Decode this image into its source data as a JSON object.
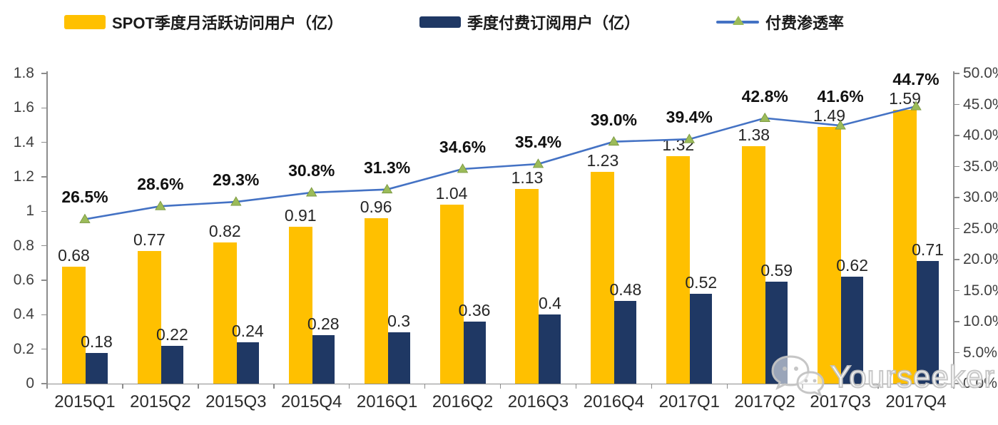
{
  "chart_data": {
    "type": "bar+line",
    "categories": [
      "2015Q1",
      "2015Q2",
      "2015Q3",
      "2015Q4",
      "2016Q1",
      "2016Q2",
      "2016Q3",
      "2016Q4",
      "2017Q1",
      "2017Q2",
      "2017Q3",
      "2017Q4"
    ],
    "series": [
      {
        "name": "SPOT季度月活跃访问用户（亿）",
        "type": "bar",
        "axis": "left",
        "color": "#FFC000",
        "values": [
          0.68,
          0.77,
          0.82,
          0.91,
          0.96,
          1.04,
          1.13,
          1.23,
          1.32,
          1.38,
          1.49,
          1.59
        ],
        "labels": [
          "0.68",
          "0.77",
          "0.82",
          "0.91",
          "0.96",
          "1.04",
          "1.13",
          "1.23",
          "1.32",
          "1.38",
          "1.49",
          "1.59"
        ]
      },
      {
        "name": "季度付费订阅用户（亿）",
        "type": "bar",
        "axis": "left",
        "color": "#1F3864",
        "values": [
          0.18,
          0.22,
          0.24,
          0.28,
          0.3,
          0.36,
          0.4,
          0.48,
          0.52,
          0.59,
          0.62,
          0.71
        ],
        "labels": [
          "0.18",
          "0.22",
          "0.24",
          "0.28",
          "0.3",
          "0.36",
          "0.4",
          "0.48",
          "0.52",
          "0.59",
          "0.62",
          "0.71"
        ]
      },
      {
        "name": "付费渗透率",
        "type": "line",
        "axis": "right",
        "color": "#4472C4",
        "marker": "triangle",
        "marker_color": "#9BBB59",
        "values": [
          26.5,
          28.6,
          29.3,
          30.8,
          31.3,
          34.6,
          35.4,
          39.0,
          39.4,
          42.8,
          41.6,
          44.7
        ],
        "labels": [
          "26.5%",
          "28.6%",
          "29.3%",
          "30.8%",
          "31.3%",
          "34.6%",
          "35.4%",
          "39.0%",
          "39.4%",
          "42.8%",
          "41.6%",
          "44.7%"
        ]
      }
    ],
    "left_axis": {
      "min": 0,
      "max": 1.8,
      "step": 0.2,
      "tick_labels": [
        "0",
        "0.2",
        "0.4",
        "0.6",
        "0.8",
        "1",
        "1.2",
        "1.4",
        "1.6",
        "1.8"
      ]
    },
    "right_axis": {
      "min": 0,
      "max": 50,
      "step": 5,
      "unit": "%",
      "tick_labels": [
        "0.0%",
        "5.0%",
        "10.0%",
        "15.0%",
        "20.0%",
        "25.0%",
        "30.0%",
        "35.0%",
        "40.0%",
        "45.0%",
        "50.0%"
      ]
    },
    "grid": false,
    "legend_position": "top"
  },
  "watermark": {
    "text": "Yourseeker",
    "icon": "wechat-icon"
  }
}
